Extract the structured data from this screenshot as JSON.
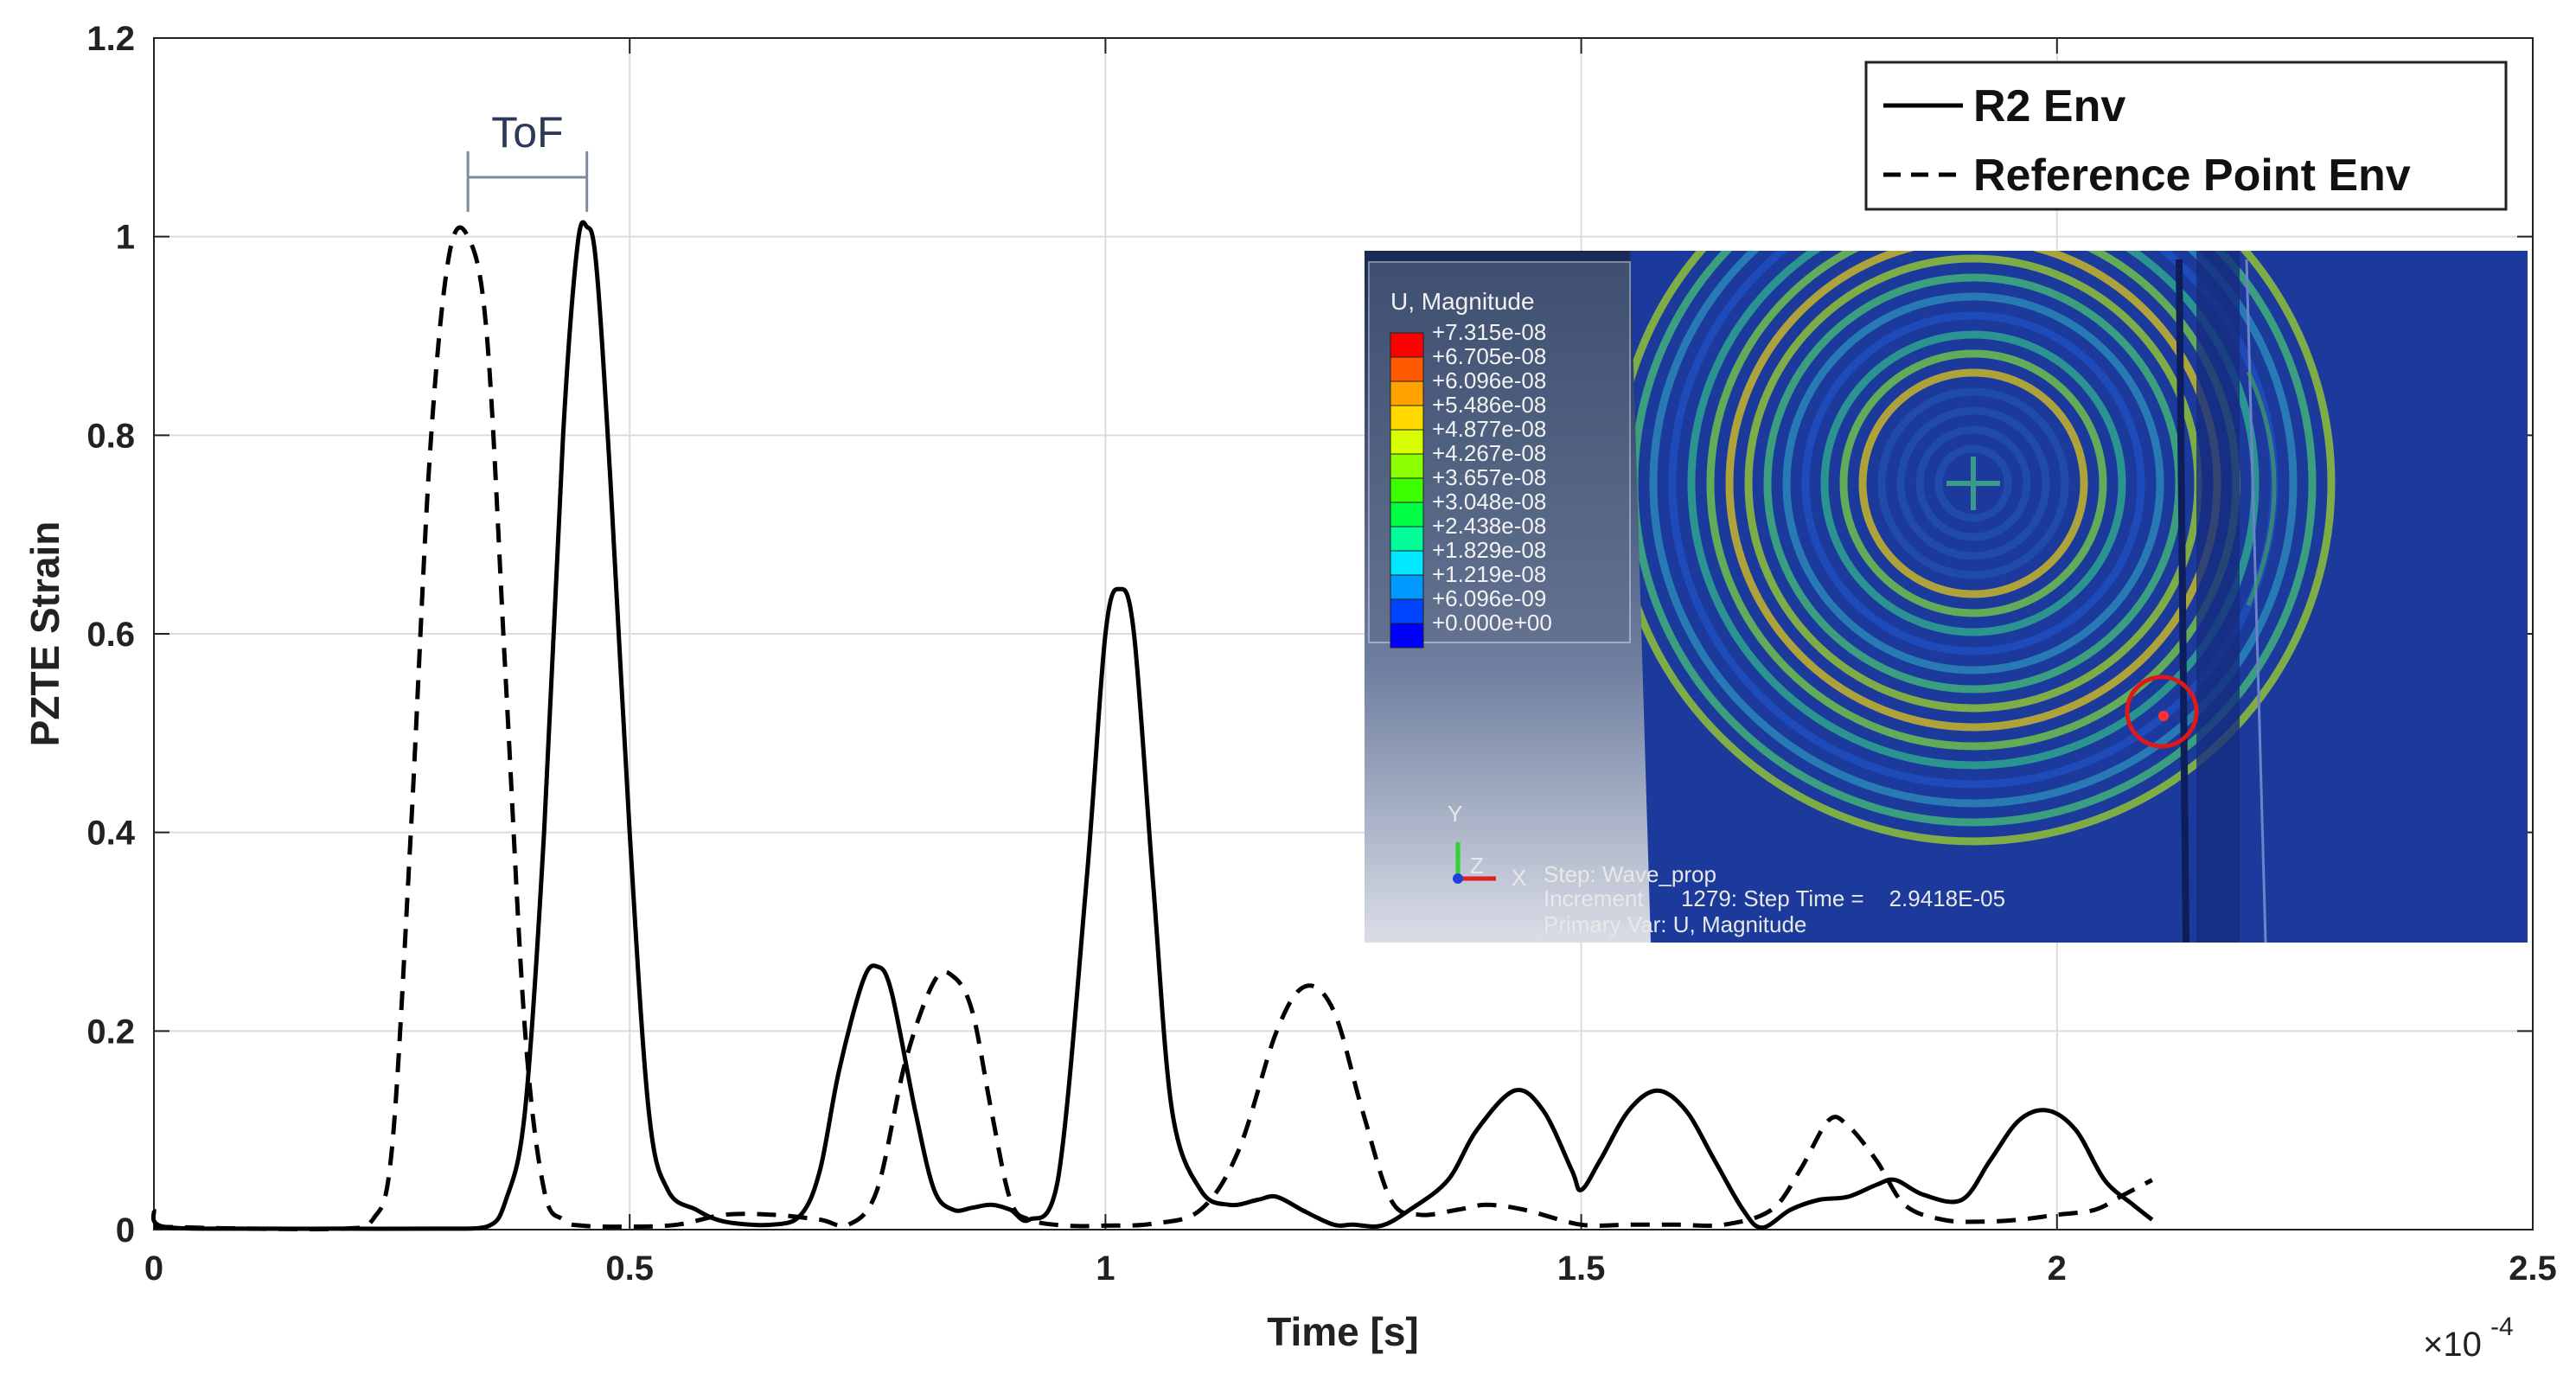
{
  "chart_data": {
    "type": "line",
    "title": "",
    "xlabel": "Time [s]",
    "ylabel": "PZTE Strain",
    "x_exponent_label": "×10",
    "x_exponent": "-4",
    "xlim": [
      0,
      2.5
    ],
    "ylim": [
      0,
      1.2
    ],
    "x_ticks": [
      0,
      0.5,
      1,
      1.5,
      2,
      2.5
    ],
    "x_tick_labels": [
      "0",
      "0.5",
      "1",
      "1.5",
      "2",
      "2.5"
    ],
    "y_ticks": [
      0,
      0.2,
      0.4,
      0.6,
      0.8,
      1,
      1.2
    ],
    "y_tick_labels": [
      "0",
      "0.2",
      "0.4",
      "0.6",
      "0.8",
      "1",
      "1.2"
    ],
    "grid": true,
    "legend_position": "top-right",
    "series": [
      {
        "name": "R2 Env",
        "style": "solid",
        "points": [
          [
            0,
            0.02
          ],
          [
            0.01,
            0.003
          ],
          [
            0.1,
            0.001
          ],
          [
            0.2,
            0.001
          ],
          [
            0.3,
            0.001
          ],
          [
            0.35,
            0.003
          ],
          [
            0.37,
            0.03
          ],
          [
            0.39,
            0.12
          ],
          [
            0.41,
            0.4
          ],
          [
            0.43,
            0.8
          ],
          [
            0.445,
            0.99
          ],
          [
            0.455,
            1.01
          ],
          [
            0.465,
            0.97
          ],
          [
            0.48,
            0.75
          ],
          [
            0.5,
            0.4
          ],
          [
            0.52,
            0.12
          ],
          [
            0.54,
            0.04
          ],
          [
            0.57,
            0.02
          ],
          [
            0.6,
            0.008
          ],
          [
            0.65,
            0.005
          ],
          [
            0.68,
            0.015
          ],
          [
            0.7,
            0.06
          ],
          [
            0.72,
            0.16
          ],
          [
            0.745,
            0.25
          ],
          [
            0.76,
            0.265
          ],
          [
            0.775,
            0.24
          ],
          [
            0.8,
            0.12
          ],
          [
            0.82,
            0.04
          ],
          [
            0.84,
            0.02
          ],
          [
            0.86,
            0.022
          ],
          [
            0.88,
            0.025
          ],
          [
            0.9,
            0.02
          ],
          [
            0.92,
            0.01
          ],
          [
            0.95,
            0.05
          ],
          [
            0.98,
            0.35
          ],
          [
            1.0,
            0.6
          ],
          [
            1.015,
            0.645
          ],
          [
            1.03,
            0.6
          ],
          [
            1.05,
            0.35
          ],
          [
            1.07,
            0.12
          ],
          [
            1.1,
            0.04
          ],
          [
            1.13,
            0.025
          ],
          [
            1.16,
            0.03
          ],
          [
            1.18,
            0.033
          ],
          [
            1.21,
            0.018
          ],
          [
            1.24,
            0.005
          ],
          [
            1.26,
            0.005
          ],
          [
            1.29,
            0.004
          ],
          [
            1.32,
            0.02
          ],
          [
            1.36,
            0.05
          ],
          [
            1.39,
            0.1
          ],
          [
            1.43,
            0.14
          ],
          [
            1.46,
            0.12
          ],
          [
            1.49,
            0.06
          ],
          [
            1.5,
            0.04
          ],
          [
            1.52,
            0.07
          ],
          [
            1.55,
            0.12
          ],
          [
            1.58,
            0.14
          ],
          [
            1.61,
            0.12
          ],
          [
            1.64,
            0.07
          ],
          [
            1.67,
            0.02
          ],
          [
            1.69,
            0.002
          ],
          [
            1.72,
            0.02
          ],
          [
            1.75,
            0.03
          ],
          [
            1.78,
            0.033
          ],
          [
            1.81,
            0.045
          ],
          [
            1.83,
            0.05
          ],
          [
            1.86,
            0.035
          ],
          [
            1.9,
            0.03
          ],
          [
            1.93,
            0.07
          ],
          [
            1.96,
            0.11
          ],
          [
            1.99,
            0.12
          ],
          [
            2.02,
            0.1
          ],
          [
            2.05,
            0.05
          ],
          [
            2.08,
            0.025
          ],
          [
            2.1,
            0.01
          ]
        ]
      },
      {
        "name": "Reference Point Env",
        "style": "dashed",
        "points": [
          [
            0,
            0.003
          ],
          [
            0.1,
            0.001
          ],
          [
            0.2,
            0.001
          ],
          [
            0.23,
            0.01
          ],
          [
            0.25,
            0.08
          ],
          [
            0.27,
            0.4
          ],
          [
            0.29,
            0.78
          ],
          [
            0.31,
            0.98
          ],
          [
            0.33,
            1.0
          ],
          [
            0.35,
            0.9
          ],
          [
            0.37,
            0.55
          ],
          [
            0.39,
            0.2
          ],
          [
            0.41,
            0.04
          ],
          [
            0.43,
            0.01
          ],
          [
            0.45,
            0.004
          ],
          [
            0.5,
            0.003
          ],
          [
            0.55,
            0.005
          ],
          [
            0.6,
            0.015
          ],
          [
            0.65,
            0.015
          ],
          [
            0.7,
            0.01
          ],
          [
            0.73,
            0.005
          ],
          [
            0.76,
            0.04
          ],
          [
            0.79,
            0.17
          ],
          [
            0.82,
            0.25
          ],
          [
            0.84,
            0.255
          ],
          [
            0.86,
            0.22
          ],
          [
            0.88,
            0.12
          ],
          [
            0.9,
            0.03
          ],
          [
            0.92,
            0.01
          ],
          [
            0.96,
            0.004
          ],
          [
            1.0,
            0.004
          ],
          [
            1.05,
            0.006
          ],
          [
            1.1,
            0.02
          ],
          [
            1.14,
            0.08
          ],
          [
            1.18,
            0.2
          ],
          [
            1.21,
            0.245
          ],
          [
            1.24,
            0.22
          ],
          [
            1.27,
            0.12
          ],
          [
            1.3,
            0.03
          ],
          [
            1.33,
            0.015
          ],
          [
            1.37,
            0.02
          ],
          [
            1.4,
            0.025
          ],
          [
            1.44,
            0.02
          ],
          [
            1.5,
            0.005
          ],
          [
            1.55,
            0.005
          ],
          [
            1.6,
            0.005
          ],
          [
            1.65,
            0.005
          ],
          [
            1.7,
            0.02
          ],
          [
            1.73,
            0.06
          ],
          [
            1.76,
            0.11
          ],
          [
            1.78,
            0.105
          ],
          [
            1.81,
            0.07
          ],
          [
            1.84,
            0.025
          ],
          [
            1.88,
            0.01
          ],
          [
            1.92,
            0.008
          ],
          [
            1.96,
            0.01
          ],
          [
            2.0,
            0.015
          ],
          [
            2.04,
            0.02
          ],
          [
            2.07,
            0.035
          ],
          [
            2.1,
            0.05
          ]
        ]
      }
    ],
    "annotations": [
      {
        "text": "ToF",
        "type": "bracket",
        "x_start": 0.33,
        "x_end": 0.455
      }
    ]
  },
  "inset": {
    "legend_title": "U, Magnitude",
    "legend_values": [
      "+7.315e-08",
      "+6.705e-08",
      "+6.096e-08",
      "+5.486e-08",
      "+4.877e-08",
      "+4.267e-08",
      "+3.657e-08",
      "+3.048e-08",
      "+2.438e-08",
      "+1.829e-08",
      "+1.219e-08",
      "+6.096e-09",
      "+0.000e+00"
    ],
    "legend_colors": [
      "#ff0000",
      "#ff5a00",
      "#ffa200",
      "#ffd800",
      "#d8ff00",
      "#8cff00",
      "#3cff00",
      "#00ff44",
      "#00ff9a",
      "#00e8ff",
      "#0098ff",
      "#0044ff",
      "#0000ff"
    ],
    "axis_y": "Y",
    "axis_z": "Z",
    "axis_x": "X",
    "step_line": "Step: Wave_prop",
    "increment_line": "Increment      1279: Step Time =    2.9418E-05",
    "primary_var_line": "Primary Var: U, Magnitude"
  }
}
